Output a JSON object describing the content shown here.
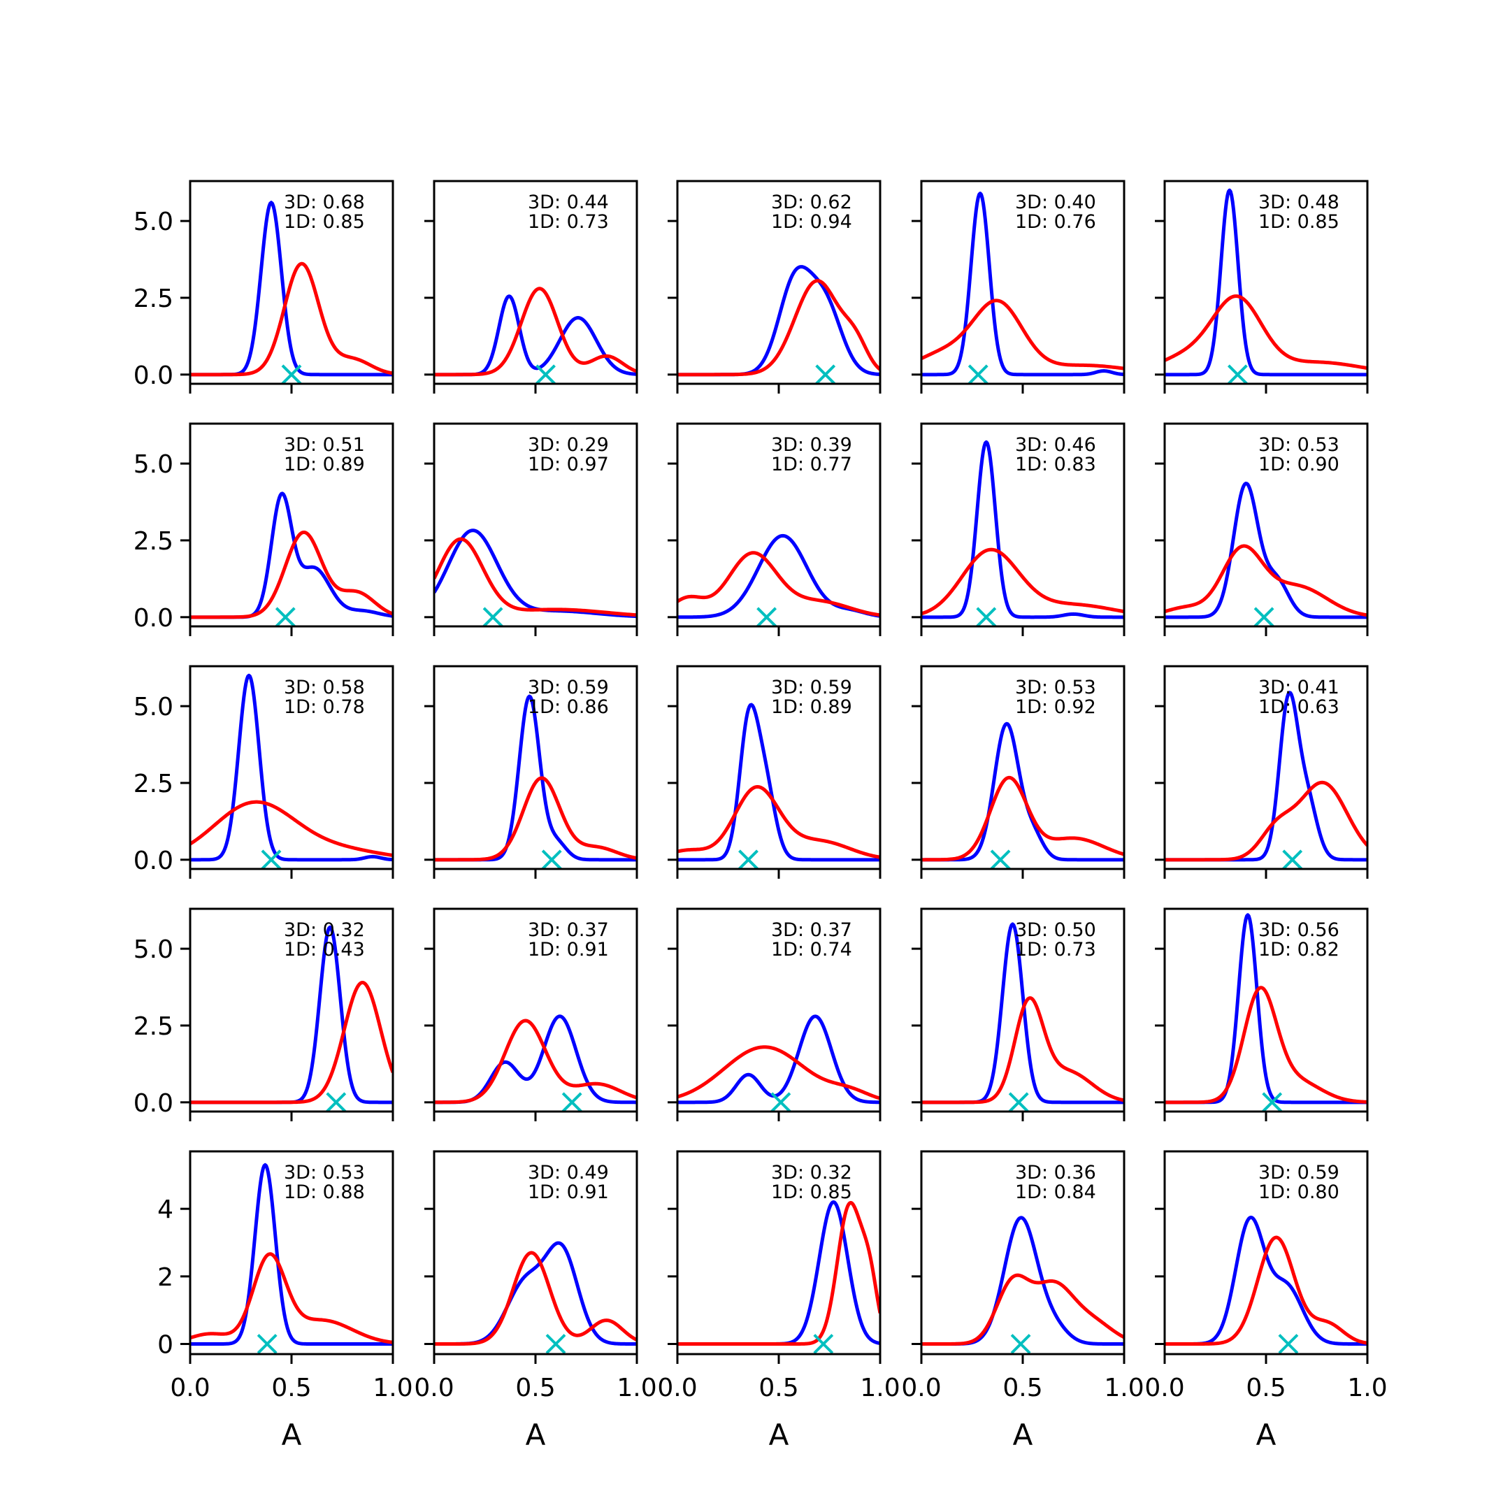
{
  "figure": {
    "xlabel": "A",
    "xticks": [
      "0.0",
      "0.5",
      "1.0"
    ],
    "ytick_labels_rows_1_4": [
      "0.0",
      "2.5",
      "5.0"
    ],
    "ytick_labels_row_5": [
      "0",
      "2",
      "4"
    ]
  },
  "chart_data": {
    "type": "line",
    "layout": "5x5 small multiples",
    "xlim": [
      0,
      1
    ],
    "grid": false,
    "series_colors": {
      "curve_3D": "#0000ff",
      "curve_1D": "#ff0000",
      "marker": "#00bfbf"
    },
    "marker_symbol": "x",
    "panels": [
      {
        "label_3d": "3D: 0.68",
        "label_1d": "1D: 0.85",
        "marker_x": 0.5,
        "blue": [
          [
            0.4,
            5.6,
            0.05
          ]
        ],
        "red": [
          [
            0.55,
            3.6,
            0.085
          ],
          [
            0.8,
            0.5,
            0.09
          ]
        ],
        "ylim": [
          -0.3,
          6.3
        ]
      },
      {
        "label_3d": "3D: 0.44",
        "label_1d": "1D: 0.73",
        "marker_x": 0.55,
        "blue": [
          [
            0.37,
            2.55,
            0.05
          ],
          [
            0.71,
            1.85,
            0.09
          ]
        ],
        "red": [
          [
            0.52,
            2.8,
            0.09
          ],
          [
            0.85,
            0.6,
            0.08
          ]
        ],
        "ylim": [
          -0.3,
          6.3
        ]
      },
      {
        "label_3d": "3D: 0.62",
        "label_1d": "1D: 0.94",
        "marker_x": 0.73,
        "blue": [
          [
            0.58,
            3.0,
            0.08
          ],
          [
            0.73,
            2.2,
            0.08
          ]
        ],
        "red": [
          [
            0.69,
            3.05,
            0.11
          ],
          [
            0.88,
            0.8,
            0.06
          ]
        ],
        "ylim": [
          -0.3,
          6.3
        ]
      },
      {
        "label_3d": "3D: 0.40",
        "label_1d": "1D: 0.76",
        "marker_x": 0.28,
        "blue": [
          [
            0.29,
            5.9,
            0.045
          ],
          [
            0.9,
            0.12,
            0.04
          ]
        ],
        "red": [
          [
            0.38,
            2.2,
            0.12
          ],
          [
            0.12,
            0.7,
            0.15
          ],
          [
            0.8,
            0.3,
            0.22
          ]
        ],
        "ylim": [
          -0.3,
          6.3
        ]
      },
      {
        "label_3d": "3D: 0.48",
        "label_1d": "1D: 0.85",
        "marker_x": 0.36,
        "blue": [
          [
            0.32,
            6.0,
            0.042
          ]
        ],
        "red": [
          [
            0.36,
            2.3,
            0.12
          ],
          [
            0.12,
            0.6,
            0.15
          ],
          [
            0.75,
            0.4,
            0.22
          ]
        ],
        "ylim": [
          -0.3,
          6.3
        ]
      },
      {
        "label_3d": "3D: 0.51",
        "label_1d": "1D: 0.89",
        "marker_x": 0.47,
        "blue": [
          [
            0.45,
            3.8,
            0.05
          ],
          [
            0.61,
            1.6,
            0.08
          ],
          [
            0.85,
            0.2,
            0.08
          ]
        ],
        "red": [
          [
            0.56,
            2.75,
            0.09
          ],
          [
            0.82,
            0.8,
            0.09
          ]
        ],
        "ylim": [
          -0.3,
          6.3
        ]
      },
      {
        "label_3d": "3D: 0.29",
        "label_1d": "1D: 0.97",
        "marker_x": 0.29,
        "blue": [
          [
            0.19,
            2.8,
            0.12
          ],
          [
            0.6,
            0.2,
            0.2
          ]
        ],
        "red": [
          [
            0.13,
            2.5,
            0.11
          ],
          [
            0.6,
            0.25,
            0.25
          ]
        ],
        "ylim": [
          -0.3,
          6.3
        ]
      },
      {
        "label_3d": "3D: 0.39",
        "label_1d": "1D: 0.77",
        "marker_x": 0.44,
        "blue": [
          [
            0.52,
            2.65,
            0.12
          ],
          [
            0.85,
            0.2,
            0.08
          ]
        ],
        "red": [
          [
            0.37,
            2.05,
            0.12
          ],
          [
            0.05,
            0.6,
            0.08
          ],
          [
            0.7,
            0.5,
            0.15
          ]
        ],
        "ylim": [
          -0.3,
          6.3
        ]
      },
      {
        "label_3d": "3D: 0.46",
        "label_1d": "1D: 0.83",
        "marker_x": 0.32,
        "blue": [
          [
            0.32,
            5.7,
            0.045
          ],
          [
            0.75,
            0.1,
            0.05
          ]
        ],
        "red": [
          [
            0.34,
            2.15,
            0.14
          ],
          [
            0.75,
            0.4,
            0.2
          ]
        ],
        "ylim": [
          -0.3,
          6.3
        ]
      },
      {
        "label_3d": "3D: 0.53",
        "label_1d": "1D: 0.90",
        "marker_x": 0.49,
        "blue": [
          [
            0.4,
            4.3,
            0.06
          ],
          [
            0.55,
            1.2,
            0.06
          ]
        ],
        "red": [
          [
            0.38,
            2.1,
            0.1
          ],
          [
            0.65,
            1.0,
            0.15
          ],
          [
            0.1,
            0.3,
            0.1
          ]
        ],
        "ylim": [
          -0.3,
          6.3
        ]
      },
      {
        "label_3d": "3D: 0.58",
        "label_1d": "1D: 0.78",
        "marker_x": 0.4,
        "blue": [
          [
            0.29,
            6.0,
            0.05
          ],
          [
            0.9,
            0.1,
            0.04
          ]
        ],
        "red": [
          [
            0.32,
            1.85,
            0.2
          ],
          [
            0.75,
            0.3,
            0.2
          ]
        ],
        "ylim": [
          -0.3,
          6.3
        ]
      },
      {
        "label_3d": "3D: 0.59",
        "label_1d": "1D: 0.86",
        "marker_x": 0.58,
        "blue": [
          [
            0.47,
            5.3,
            0.05
          ],
          [
            0.6,
            0.6,
            0.05
          ]
        ],
        "red": [
          [
            0.53,
            2.65,
            0.09
          ],
          [
            0.8,
            0.4,
            0.1
          ]
        ],
        "ylim": [
          -0.3,
          6.3
        ]
      },
      {
        "label_3d": "3D: 0.59",
        "label_1d": "1D: 0.89",
        "marker_x": 0.35,
        "blue": [
          [
            0.35,
            4.2,
            0.045
          ],
          [
            0.43,
            2.5,
            0.05
          ]
        ],
        "red": [
          [
            0.39,
            2.3,
            0.11
          ],
          [
            0.7,
            0.6,
            0.15
          ],
          [
            0.05,
            0.3,
            0.1
          ]
        ],
        "ylim": [
          -0.3,
          6.3
        ]
      },
      {
        "label_3d": "3D: 0.53",
        "label_1d": "1D: 0.92",
        "marker_x": 0.39,
        "blue": [
          [
            0.42,
            4.4,
            0.06
          ],
          [
            0.55,
            0.8,
            0.05
          ]
        ],
        "red": [
          [
            0.43,
            2.6,
            0.09
          ],
          [
            0.75,
            0.7,
            0.15
          ]
        ],
        "ylim": [
          -0.3,
          6.3
        ]
      },
      {
        "label_3d": "3D: 0.41",
        "label_1d": "1D: 0.63",
        "marker_x": 0.63,
        "blue": [
          [
            0.61,
            5.0,
            0.045
          ],
          [
            0.7,
            2.0,
            0.05
          ]
        ],
        "red": [
          [
            0.78,
            2.5,
            0.12
          ],
          [
            0.55,
            0.9,
            0.08
          ]
        ],
        "ylim": [
          -0.3,
          6.3
        ]
      },
      {
        "label_3d": "3D: 0.32",
        "label_1d": "1D: 0.43",
        "marker_x": 0.72,
        "blue": [
          [
            0.69,
            5.7,
            0.05
          ]
        ],
        "red": [
          [
            0.85,
            3.9,
            0.09
          ]
        ],
        "ylim": [
          -0.3,
          6.3
        ]
      },
      {
        "label_3d": "3D: 0.37",
        "label_1d": "1D: 0.91",
        "marker_x": 0.68,
        "blue": [
          [
            0.62,
            2.8,
            0.08
          ],
          [
            0.35,
            1.3,
            0.07
          ]
        ],
        "red": [
          [
            0.45,
            2.65,
            0.1
          ],
          [
            0.8,
            0.6,
            0.12
          ]
        ],
        "ylim": [
          -0.3,
          6.3
        ]
      },
      {
        "label_3d": "3D: 0.37",
        "label_1d": "1D: 0.74",
        "marker_x": 0.51,
        "blue": [
          [
            0.68,
            2.8,
            0.08
          ],
          [
            0.35,
            0.9,
            0.06
          ]
        ],
        "red": [
          [
            0.43,
            1.8,
            0.2
          ],
          [
            0.85,
            0.3,
            0.1
          ]
        ],
        "ylim": [
          -0.3,
          6.3
        ]
      },
      {
        "label_3d": "3D: 0.50",
        "label_1d": "1D: 0.73",
        "marker_x": 0.48,
        "blue": [
          [
            0.45,
            5.8,
            0.05
          ]
        ],
        "red": [
          [
            0.53,
            3.1,
            0.07
          ],
          [
            0.72,
            1.0,
            0.12
          ]
        ],
        "ylim": [
          -0.3,
          6.3
        ]
      },
      {
        "label_3d": "3D: 0.56",
        "label_1d": "1D: 0.82",
        "marker_x": 0.53,
        "blue": [
          [
            0.41,
            6.1,
            0.045
          ]
        ],
        "red": [
          [
            0.47,
            3.5,
            0.08
          ],
          [
            0.65,
            0.7,
            0.12
          ]
        ],
        "ylim": [
          -0.3,
          6.3
        ]
      },
      {
        "label_3d": "3D: 0.53",
        "label_1d": "1D: 0.88",
        "marker_x": 0.38,
        "blue": [
          [
            0.37,
            5.3,
            0.05
          ]
        ],
        "red": [
          [
            0.39,
            2.5,
            0.08
          ],
          [
            0.65,
            0.7,
            0.15
          ],
          [
            0.1,
            0.3,
            0.1
          ]
        ],
        "ylim": [
          -0.3,
          5.7
        ]
      },
      {
        "label_3d": "3D: 0.49",
        "label_1d": "1D: 0.91",
        "marker_x": 0.6,
        "blue": [
          [
            0.63,
            2.7,
            0.08
          ],
          [
            0.45,
            1.8,
            0.09
          ]
        ],
        "red": [
          [
            0.48,
            2.7,
            0.09
          ],
          [
            0.85,
            0.7,
            0.08
          ]
        ],
        "ylim": [
          -0.3,
          5.7
        ]
      },
      {
        "label_3d": "3D: 0.32",
        "label_1d": "1D: 0.85",
        "marker_x": 0.72,
        "blue": [
          [
            0.77,
            4.2,
            0.07
          ]
        ],
        "red": [
          [
            0.85,
            4.1,
            0.06
          ],
          [
            0.95,
            1.6,
            0.04
          ]
        ],
        "ylim": [
          -0.3,
          5.7
        ]
      },
      {
        "label_3d": "3D: 0.36",
        "label_1d": "1D: 0.84",
        "marker_x": 0.49,
        "blue": [
          [
            0.49,
            3.7,
            0.08
          ],
          [
            0.65,
            0.5,
            0.07
          ]
        ],
        "red": [
          [
            0.45,
            1.75,
            0.08
          ],
          [
            0.65,
            1.7,
            0.1
          ],
          [
            0.85,
            0.6,
            0.1
          ]
        ],
        "ylim": [
          -0.3,
          5.7
        ]
      },
      {
        "label_3d": "3D: 0.59",
        "label_1d": "1D: 0.80",
        "marker_x": 0.61,
        "blue": [
          [
            0.42,
            3.6,
            0.07
          ],
          [
            0.6,
            1.7,
            0.08
          ]
        ],
        "red": [
          [
            0.55,
            3.15,
            0.09
          ],
          [
            0.8,
            0.6,
            0.08
          ]
        ],
        "ylim": [
          -0.3,
          5.7
        ]
      }
    ]
  }
}
